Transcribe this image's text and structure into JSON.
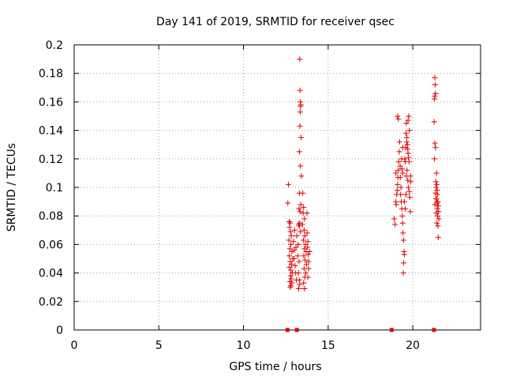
{
  "chart_data": {
    "type": "scatter",
    "title": "Day 141 of 2019, SRMTID for receiver qsec",
    "xlabel": "GPS time / hours",
    "ylabel": "SRMTID / TECUs",
    "xlim": [
      0,
      24
    ],
    "ylim": [
      0,
      0.2
    ],
    "x_ticks": [
      0,
      5,
      10,
      15,
      20
    ],
    "x_tick_labels": [
      "0",
      "5",
      "10",
      "15",
      "20"
    ],
    "y_ticks": [
      0,
      0.02,
      0.04,
      0.06,
      0.08,
      0.1,
      0.12,
      0.14,
      0.16,
      0.18,
      0.2
    ],
    "y_tick_labels": [
      "0",
      "0.02",
      "0.04",
      "0.06",
      "0.08",
      "0.1",
      "0.12",
      "0.14",
      "0.16",
      "0.18",
      "0.2"
    ],
    "grid": true,
    "marker": "+",
    "color": "#e00000",
    "baseline_markers": [
      12.6,
      13.15,
      18.75,
      21.25
    ],
    "series": [
      {
        "name": "SRMTID",
        "points": [
          [
            12.65,
            0.102
          ],
          [
            12.62,
            0.089
          ],
          [
            12.7,
            0.076
          ],
          [
            12.75,
            0.075
          ],
          [
            12.72,
            0.072
          ],
          [
            12.78,
            0.069
          ],
          [
            12.82,
            0.066
          ],
          [
            12.68,
            0.063
          ],
          [
            12.8,
            0.06
          ],
          [
            12.74,
            0.057
          ],
          [
            12.86,
            0.055
          ],
          [
            12.7,
            0.052
          ],
          [
            12.9,
            0.05
          ],
          [
            12.76,
            0.048
          ],
          [
            12.84,
            0.046
          ],
          [
            12.72,
            0.044
          ],
          [
            12.8,
            0.042
          ],
          [
            12.88,
            0.04
          ],
          [
            12.78,
            0.038
          ],
          [
            12.82,
            0.036
          ],
          [
            12.74,
            0.034
          ],
          [
            12.86,
            0.033
          ],
          [
            12.8,
            0.031
          ],
          [
            12.76,
            0.03
          ],
          [
            12.95,
            0.062
          ],
          [
            13.0,
            0.056
          ],
          [
            12.98,
            0.05
          ],
          [
            13.05,
            0.045
          ],
          [
            13.02,
            0.07
          ],
          [
            13.08,
            0.04
          ],
          [
            13.12,
            0.035
          ],
          [
            13.1,
            0.058
          ],
          [
            13.2,
            0.052
          ],
          [
            13.15,
            0.066
          ],
          [
            13.32,
            0.19
          ],
          [
            13.34,
            0.168
          ],
          [
            13.36,
            0.16
          ],
          [
            13.38,
            0.158
          ],
          [
            13.37,
            0.157
          ],
          [
            13.35,
            0.153
          ],
          [
            13.33,
            0.143
          ],
          [
            13.4,
            0.135
          ],
          [
            13.3,
            0.125
          ],
          [
            13.36,
            0.115
          ],
          [
            13.42,
            0.108
          ],
          [
            13.3,
            0.096
          ],
          [
            13.38,
            0.088
          ],
          [
            13.28,
            0.085
          ],
          [
            13.34,
            0.083
          ],
          [
            13.32,
            0.075
          ],
          [
            13.26,
            0.074
          ],
          [
            13.3,
            0.073
          ],
          [
            13.36,
            0.069
          ],
          [
            13.22,
            0.06
          ],
          [
            13.28,
            0.048
          ],
          [
            13.24,
            0.04
          ],
          [
            13.3,
            0.035
          ],
          [
            13.32,
            0.032
          ],
          [
            13.26,
            0.029
          ],
          [
            13.5,
            0.096
          ],
          [
            13.55,
            0.086
          ],
          [
            13.52,
            0.082
          ],
          [
            13.6,
            0.078
          ],
          [
            13.48,
            0.074
          ],
          [
            13.58,
            0.07
          ],
          [
            13.62,
            0.066
          ],
          [
            13.54,
            0.063
          ],
          [
            13.66,
            0.06
          ],
          [
            13.6,
            0.057
          ],
          [
            13.7,
            0.055
          ],
          [
            13.56,
            0.052
          ],
          [
            13.64,
            0.049
          ],
          [
            13.72,
            0.046
          ],
          [
            13.58,
            0.043
          ],
          [
            13.68,
            0.04
          ],
          [
            13.62,
            0.037
          ],
          [
            13.55,
            0.033
          ],
          [
            13.6,
            0.029
          ],
          [
            13.76,
            0.068
          ],
          [
            13.8,
            0.062
          ],
          [
            13.78,
            0.058
          ],
          [
            13.82,
            0.053
          ],
          [
            13.85,
            0.048
          ],
          [
            13.84,
            0.043
          ],
          [
            13.8,
            0.037
          ],
          [
            13.75,
            0.082
          ],
          [
            13.9,
            0.055
          ],
          [
            18.9,
            0.078
          ],
          [
            18.95,
            0.074
          ],
          [
            19.0,
            0.09
          ],
          [
            19.02,
            0.088
          ],
          [
            19.05,
            0.095
          ],
          [
            19.08,
            0.098
          ],
          [
            19.1,
            0.102
          ],
          [
            19.12,
            0.107
          ],
          [
            19.14,
            0.112
          ],
          [
            19.16,
            0.118
          ],
          [
            19.2,
            0.125
          ],
          [
            19.22,
            0.132
          ],
          [
            19.15,
            0.148
          ],
          [
            19.1,
            0.15
          ],
          [
            19.25,
            0.115
          ],
          [
            19.3,
            0.1
          ],
          [
            19.28,
            0.095
          ],
          [
            19.32,
            0.09
          ],
          [
            19.35,
            0.085
          ],
          [
            19.38,
            0.08
          ],
          [
            19.4,
            0.075
          ],
          [
            19.42,
            0.068
          ],
          [
            19.45,
            0.063
          ],
          [
            19.48,
            0.055
          ],
          [
            19.5,
            0.053
          ],
          [
            19.46,
            0.047
          ],
          [
            19.44,
            0.04
          ],
          [
            19.26,
            0.107
          ],
          [
            19.34,
            0.12
          ],
          [
            19.36,
            0.113
          ],
          [
            19.4,
            0.128
          ],
          [
            19.5,
            0.09
          ],
          [
            19.55,
            0.085
          ],
          [
            19.52,
            0.12
          ],
          [
            19.56,
            0.118
          ],
          [
            19.6,
            0.138
          ],
          [
            19.62,
            0.145
          ],
          [
            19.65,
            0.135
          ],
          [
            19.64,
            0.132
          ],
          [
            19.68,
            0.13
          ],
          [
            19.7,
            0.127
          ],
          [
            19.72,
            0.124
          ],
          [
            19.75,
            0.121
          ],
          [
            19.78,
            0.118
          ],
          [
            19.66,
            0.112
          ],
          [
            19.62,
            0.108
          ],
          [
            19.7,
            0.105
          ],
          [
            19.74,
            0.1
          ],
          [
            19.8,
            0.097
          ],
          [
            19.82,
            0.093
          ],
          [
            19.86,
            0.108
          ],
          [
            19.88,
            0.104
          ],
          [
            19.76,
            0.15
          ],
          [
            19.72,
            0.147
          ],
          [
            19.8,
            0.14
          ],
          [
            19.58,
            0.128
          ],
          [
            19.85,
            0.083
          ],
          [
            19.6,
            0.095
          ],
          [
            19.4,
            0.11
          ],
          [
            19.0,
            0.11
          ],
          [
            21.3,
            0.177
          ],
          [
            21.32,
            0.172
          ],
          [
            21.34,
            0.166
          ],
          [
            21.3,
            0.164
          ],
          [
            21.28,
            0.162
          ],
          [
            21.26,
            0.146
          ],
          [
            21.3,
            0.131
          ],
          [
            21.34,
            0.128
          ],
          [
            21.28,
            0.12
          ],
          [
            21.4,
            0.11
          ],
          [
            21.36,
            0.104
          ],
          [
            21.42,
            0.102
          ],
          [
            21.38,
            0.1
          ],
          [
            21.44,
            0.098
          ],
          [
            21.34,
            0.096
          ],
          [
            21.46,
            0.095
          ],
          [
            21.4,
            0.092
          ],
          [
            21.48,
            0.09
          ],
          [
            21.3,
            0.088
          ],
          [
            21.5,
            0.087
          ],
          [
            21.44,
            0.085
          ],
          [
            21.52,
            0.083
          ],
          [
            21.38,
            0.082
          ],
          [
            21.46,
            0.08
          ],
          [
            21.54,
            0.078
          ],
          [
            21.42,
            0.075
          ],
          [
            21.48,
            0.073
          ],
          [
            21.5,
            0.065
          ],
          [
            21.36,
            0.092
          ],
          [
            21.44,
            0.089
          ]
        ]
      }
    ]
  }
}
